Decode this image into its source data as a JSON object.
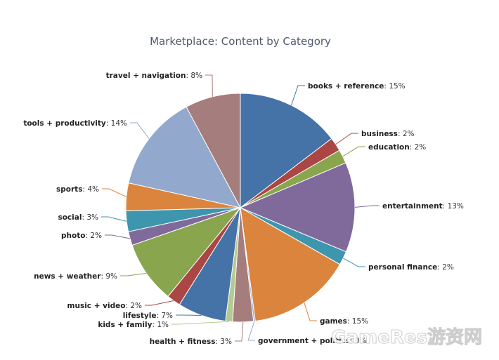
{
  "chart_data": {
    "type": "pie",
    "title": "Marketplace: Content by Category",
    "value_suffix": "%",
    "slices": [
      {
        "name": "books + reference",
        "value": 15,
        "color": "#4572a7"
      },
      {
        "name": "business",
        "value": 2,
        "color": "#aa4643"
      },
      {
        "name": "education",
        "value": 2,
        "color": "#89a54e"
      },
      {
        "name": "entertainment",
        "value": 13,
        "color": "#80699b"
      },
      {
        "name": "personal finance",
        "value": 2,
        "color": "#3d96ae"
      },
      {
        "name": "games",
        "value": 15,
        "color": "#db843d"
      },
      {
        "name": "government + politics",
        "value": 0,
        "color": "#92a8cd"
      },
      {
        "name": "health + fitness",
        "value": 3,
        "color": "#a47d7c"
      },
      {
        "name": "kids + family",
        "value": 1,
        "color": "#b5ca92"
      },
      {
        "name": "lifestyle",
        "value": 7,
        "color": "#4572a7"
      },
      {
        "name": "music + video",
        "value": 2,
        "color": "#aa4643"
      },
      {
        "name": "news + weather",
        "value": 9,
        "color": "#89a54e"
      },
      {
        "name": "photo",
        "value": 2,
        "color": "#80699b"
      },
      {
        "name": "social",
        "value": 3,
        "color": "#3d96ae"
      },
      {
        "name": "sports",
        "value": 4,
        "color": "#db843d"
      },
      {
        "name": "tools + productivity",
        "value": 14,
        "color": "#92a8cd"
      },
      {
        "name": "travel + navigation",
        "value": 8,
        "color": "#a47d7c"
      }
    ]
  },
  "watermark": {
    "text": "GameRes游资网"
  }
}
